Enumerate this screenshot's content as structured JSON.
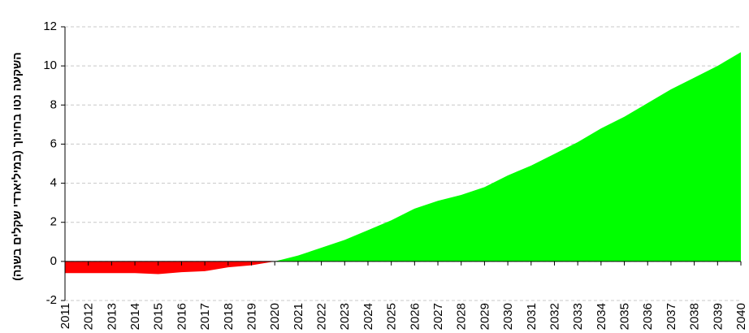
{
  "chart_data": {
    "type": "area",
    "y_label": "השקעה נטו בחינוך (במיליארדי שקלים בשנה)",
    "categories": [
      "2011",
      "2012",
      "2013",
      "2014",
      "2015",
      "2016",
      "2017",
      "2018",
      "2019",
      "2020",
      "2021",
      "2022",
      "2023",
      "2024",
      "2025",
      "2026",
      "2027",
      "2028",
      "2029",
      "2030",
      "2031",
      "2032",
      "2033",
      "2034",
      "2035",
      "2036",
      "2037",
      "2038",
      "2039",
      "2040"
    ],
    "series": [
      {
        "values": [
          -0.6,
          -0.6,
          -0.6,
          -0.6,
          -0.65,
          -0.55,
          -0.5,
          -0.3,
          -0.2,
          0,
          0.3,
          0.7,
          1.1,
          1.6,
          2.1,
          2.7,
          3.1,
          3.4,
          3.8,
          4.4,
          4.9,
          5.5,
          6.1,
          6.8,
          7.4,
          8.1,
          8.8,
          9.4,
          10.0,
          10.7
        ],
        "positive_color": "#00ff00",
        "negative_color": "#ff0000"
      }
    ],
    "ylim": [
      -2,
      12
    ],
    "yticks": [
      -2,
      0,
      2,
      4,
      6,
      8,
      10,
      12
    ],
    "grid": true
  }
}
